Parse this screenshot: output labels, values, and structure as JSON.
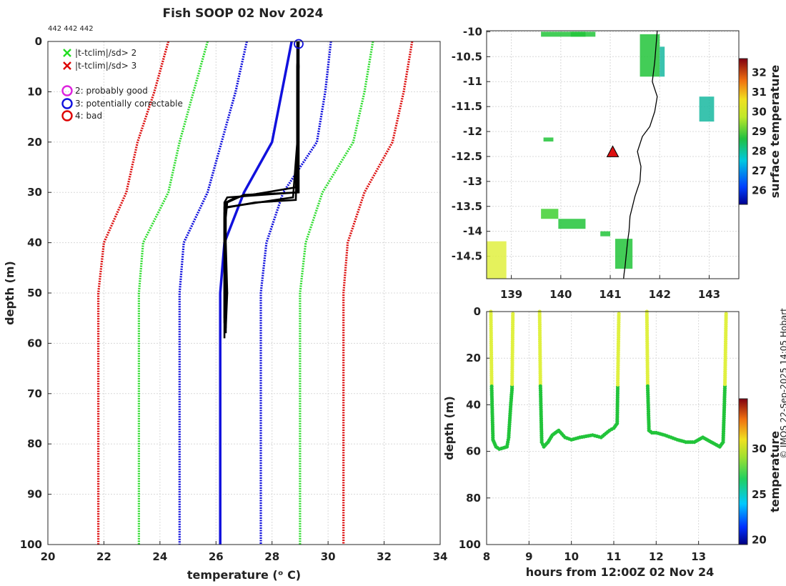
{
  "page": {
    "title": "Fish SOOP 02 Nov 2024",
    "ids": "442 442 442",
    "credit": "© IMOS 22-Sep-2025 14:05 Hobart"
  },
  "legend": {
    "items": [
      {
        "marker": "x",
        "color": "#22dd22",
        "label": "|t-tclim|/sd> 2"
      },
      {
        "marker": "x",
        "color": "#dd0000",
        "label": "|t-tclim|/sd> 3"
      },
      {
        "marker": "o",
        "color": "#dd22dd",
        "label": "2: probably good"
      },
      {
        "marker": "o",
        "color": "#1111dd",
        "label": "3: potentially correctable"
      },
      {
        "marker": "o",
        "color": "#dd0000",
        "label": "4: bad"
      }
    ]
  },
  "colors": {
    "red": "#dd1111",
    "green": "#33dd33",
    "blue": "#1111dd",
    "black": "#000000",
    "ocean_green": "#22c43a",
    "ocean_yellow": "#e0f040"
  },
  "chart_data": [
    {
      "id": "profile",
      "type": "line",
      "xlabel": "temperature (ᵒ C)",
      "ylabel": "depth (m)",
      "xlim": [
        20,
        34
      ],
      "ylim": [
        100,
        0
      ],
      "xticks": [
        "20",
        "22",
        "24",
        "26",
        "28",
        "30",
        "32",
        "34"
      ],
      "yticks": [
        "0",
        "10",
        "20",
        "30",
        "40",
        "50",
        "60",
        "70",
        "80",
        "90",
        "100"
      ],
      "climatology_series": [
        {
          "name": "clim -3sd",
          "color": "red",
          "depth": [
            0,
            10,
            20,
            30,
            40,
            50,
            60,
            100
          ],
          "temp": [
            24.3,
            23.8,
            23.2,
            22.8,
            22.0,
            21.8,
            21.8,
            21.8
          ]
        },
        {
          "name": "clim -2sd",
          "color": "green",
          "depth": [
            0,
            10,
            20,
            30,
            40,
            50,
            60,
            100
          ],
          "temp": [
            25.7,
            25.2,
            24.7,
            24.3,
            23.4,
            23.25,
            23.25,
            23.25
          ]
        },
        {
          "name": "clim -1sd",
          "color": "blue",
          "depth": [
            0,
            10,
            20,
            30,
            40,
            50,
            60,
            100
          ],
          "temp": [
            27.1,
            26.7,
            26.2,
            25.7,
            24.85,
            24.7,
            24.7,
            24.7
          ]
        },
        {
          "name": "clim +1sd",
          "color": "blue",
          "depth": [
            0,
            10,
            20,
            30,
            40,
            50,
            60,
            100
          ],
          "temp": [
            30.1,
            29.9,
            29.6,
            28.4,
            27.8,
            27.6,
            27.6,
            27.6
          ]
        },
        {
          "name": "clim +2sd",
          "color": "green",
          "depth": [
            0,
            10,
            20,
            30,
            40,
            50,
            60,
            100
          ],
          "temp": [
            31.6,
            31.3,
            30.9,
            29.8,
            29.2,
            29.0,
            29.0,
            29.0
          ]
        },
        {
          "name": "clim +3sd",
          "color": "red",
          "depth": [
            0,
            10,
            20,
            30,
            40,
            50,
            60,
            100
          ],
          "temp": [
            33.0,
            32.7,
            32.3,
            31.3,
            30.7,
            30.55,
            30.55,
            30.55
          ]
        }
      ],
      "mean_series": {
        "name": "climatology mean",
        "color": "blue",
        "depth": [
          0,
          20,
          30,
          40,
          50,
          100
        ],
        "temp": [
          28.7,
          28.0,
          27.0,
          26.3,
          26.15,
          26.15
        ]
      },
      "profiles": [
        {
          "depth": [
            0,
            5,
            10,
            20,
            30,
            31,
            32,
            35,
            40,
            50,
            59
          ],
          "temp": [
            28.95,
            28.9,
            28.9,
            28.9,
            28.9,
            26.4,
            26.3,
            26.3,
            26.3,
            26.3,
            26.3
          ]
        },
        {
          "depth": [
            0,
            5,
            10,
            20,
            29,
            31,
            32,
            35,
            40,
            50,
            58
          ],
          "temp": [
            28.9,
            28.9,
            28.9,
            28.9,
            28.85,
            26.7,
            26.35,
            26.3,
            26.3,
            26.35,
            26.35
          ]
        },
        {
          "depth": [
            0,
            5,
            10,
            20,
            30,
            30.5,
            32,
            35,
            40,
            50,
            57
          ],
          "temp": [
            28.95,
            28.95,
            28.95,
            28.95,
            28.95,
            27.0,
            26.4,
            26.35,
            26.35,
            26.4,
            26.35
          ]
        },
        {
          "depth": [
            0,
            5,
            10,
            20,
            31,
            33,
            35,
            40,
            50,
            56
          ],
          "temp": [
            28.9,
            28.95,
            28.9,
            28.9,
            28.75,
            26.3,
            26.3,
            26.3,
            26.3,
            26.3
          ]
        },
        {
          "depth": [
            0,
            5,
            10,
            20,
            31.5,
            32,
            33,
            34,
            35,
            40,
            50,
            55
          ],
          "temp": [
            28.95,
            28.9,
            28.9,
            28.9,
            28.85,
            27.4,
            26.4,
            26.3,
            26.3,
            26.3,
            26.3,
            26.3
          ]
        }
      ],
      "qc_flag": {
        "depth": 0.5,
        "temp": 28.95,
        "flag": "3: potentially correctable"
      }
    },
    {
      "id": "sst_map",
      "type": "heatmap",
      "xlim": [
        138.5,
        143.6
      ],
      "ylim": [
        -14.95,
        -9.98
      ],
      "xticks": [
        "139",
        "140",
        "141",
        "142",
        "143"
      ],
      "yticks": [
        "-10",
        "-10.5",
        "-11",
        "-11.5",
        "-12",
        "-12.5",
        "-13",
        "-13.5",
        "-14",
        "-14.5"
      ],
      "colorbar": {
        "label": "surface temperature",
        "ticks": [
          "26",
          "27",
          "28",
          "29",
          "30",
          "31",
          "32"
        ],
        "range": [
          25.3,
          32.7
        ]
      },
      "station": {
        "lon": 141.05,
        "lat": -12.42
      },
      "coast_lon": [
        141.95,
        141.9,
        141.85,
        141.95,
        141.9,
        141.8,
        141.65,
        141.55,
        141.62,
        141.6,
        141.5,
        141.4,
        141.38,
        141.35,
        141.32,
        141.3,
        141.28,
        141.27
      ],
      "coast_lat": [
        -9.98,
        -10.6,
        -11.0,
        -11.3,
        -11.6,
        -11.9,
        -12.1,
        -12.4,
        -12.7,
        -13.0,
        -13.3,
        -13.7,
        -14.0,
        -14.2,
        -14.5,
        -14.7,
        -14.85,
        -14.95
      ]
    },
    {
      "id": "depth_time",
      "type": "scatter",
      "xlabel": "hours from 12:00Z 02 Nov 24",
      "ylabel": "depth (m)",
      "xlim": [
        8,
        13.95
      ],
      "ylim": [
        100,
        0
      ],
      "xticks": [
        "8",
        "9",
        "10",
        "11",
        "12",
        "13"
      ],
      "yticks": [
        "0",
        "20",
        "40",
        "60",
        "80",
        "100"
      ],
      "colorbar": {
        "label": "temperature",
        "ticks": [
          "20",
          "25",
          "30"
        ],
        "range": [
          19.5,
          35.5
        ]
      },
      "segments": [
        {
          "time": [
            8.1,
            8.12,
            8.15,
            8.22,
            8.3,
            8.4,
            8.48,
            8.52,
            8.57,
            8.6,
            8.62
          ],
          "depth": [
            0,
            33,
            55,
            58,
            59,
            58.5,
            58,
            54,
            40,
            33,
            0
          ]
        },
        {
          "time": [
            9.25,
            9.27,
            9.3,
            9.35,
            9.45,
            9.55,
            9.7,
            9.85,
            10.0,
            10.2,
            10.5,
            10.7,
            10.9,
            11.0,
            11.08,
            11.12
          ],
          "depth": [
            0,
            32,
            56,
            58,
            56,
            53,
            51,
            54,
            55,
            54,
            53,
            54,
            51,
            50,
            48,
            0
          ]
        },
        {
          "time": [
            11.78,
            11.8,
            11.83,
            11.9,
            12.0,
            12.2,
            12.5,
            12.7,
            12.9,
            13.1,
            13.3,
            13.5,
            13.58,
            13.62,
            13.65
          ],
          "depth": [
            0,
            32,
            51,
            52,
            52,
            53,
            55,
            56,
            56,
            54,
            56,
            58,
            56,
            33,
            0
          ]
        }
      ],
      "surface_temp": 29.5,
      "deep_temp": 27.0,
      "thermocline_depth": 32
    }
  ]
}
